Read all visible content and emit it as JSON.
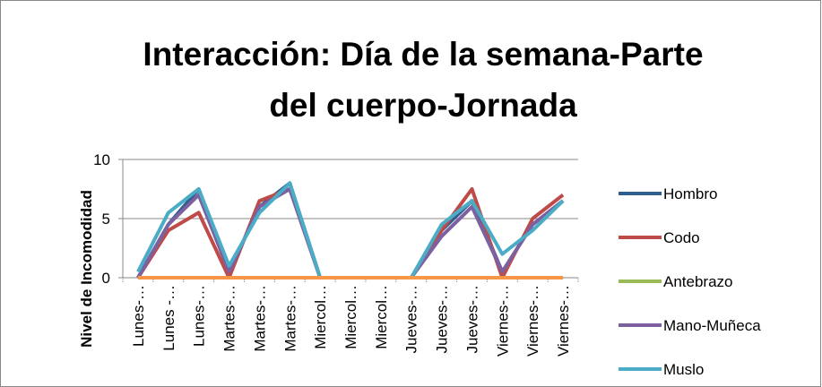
{
  "chart_data": {
    "type": "line",
    "title": [
      "Interacción: Día de la semana-Parte",
      "del cuerpo-Jornada"
    ],
    "y_label": "Nivel de Incomodidad",
    "categories": [
      "Lunes-…",
      "Lunes -…",
      "Lunes-…",
      "Martes-…",
      "Martes-…",
      "Martes-…",
      "Miercol…",
      "Miercol…",
      "Miercol…",
      "Jueves-…",
      "Jueves-…",
      "Jueves-…",
      "Viernes-…",
      "Viernes-…",
      "Viernes-…"
    ],
    "series": [
      {
        "name": "Hombro",
        "color": "#2F5D8F",
        "values": [
          0,
          4.5,
          7.5,
          0.5,
          6,
          8,
          0,
          0,
          0,
          0,
          4,
          6.5,
          0.5,
          4.5,
          6.5
        ]
      },
      {
        "name": "Codo",
        "color": "#BE4B48",
        "values": [
          0,
          4,
          5.5,
          0,
          6.5,
          7.5,
          0,
          0,
          0,
          0,
          4,
          7.5,
          0,
          5,
          7
        ]
      },
      {
        "name": "Antebrazo",
        "color": "#9BBB59",
        "values": [
          0,
          0,
          0,
          0,
          0,
          0,
          0,
          0,
          0,
          0,
          0,
          0,
          0,
          0,
          0
        ]
      },
      {
        "name": "Mano-Muñeca",
        "color": "#7D60A0",
        "values": [
          0,
          4.5,
          7,
          0.5,
          6,
          7.5,
          0,
          0,
          0,
          0,
          3.5,
          6,
          0.5,
          4.5,
          6.5
        ]
      },
      {
        "name": "Muslo",
        "color": "#4BACC6",
        "values": [
          0.5,
          5.5,
          7.5,
          1,
          5.5,
          8,
          0,
          0,
          0,
          0,
          4.5,
          6.5,
          2,
          4,
          6.5
        ]
      },
      {
        "color": "#F79646",
        "values": [
          0,
          0,
          0,
          0,
          0,
          0,
          0,
          0,
          0,
          0,
          0,
          0,
          0,
          0,
          0
        ]
      }
    ],
    "ylim": [
      0,
      10
    ],
    "yticks": [
      0,
      5,
      10
    ],
    "grid": true,
    "legend": "right"
  }
}
